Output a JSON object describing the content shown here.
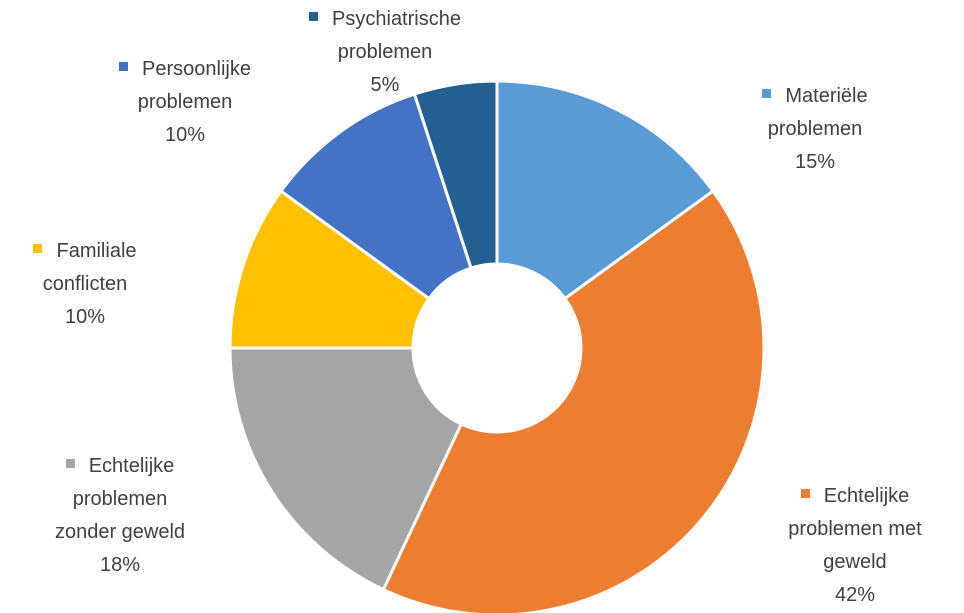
{
  "chart_data": {
    "type": "donut",
    "categories": [
      "Materiële problemen",
      "Echtelijke problemen met geweld",
      "Echtelijke problemen zonder geweld",
      "Familiale conflicten",
      "Persoonlijke problemen",
      "Psychiatrische problemen"
    ],
    "values": [
      15,
      42,
      18,
      10,
      10,
      5
    ],
    "value_labels": [
      "15%",
      "42%",
      "18%",
      "10%",
      "10%",
      "5%"
    ],
    "colors": [
      "#5b9bd5",
      "#ed7d31",
      "#a5a5a5",
      "#ffc000",
      "#4472c4",
      "#255e91"
    ]
  }
}
